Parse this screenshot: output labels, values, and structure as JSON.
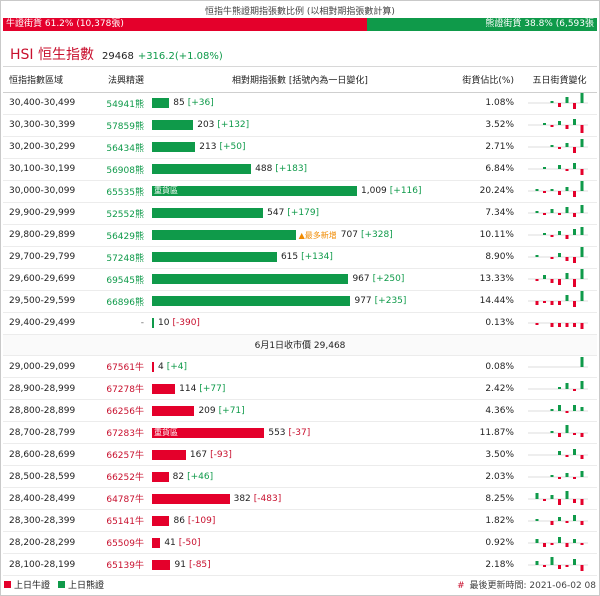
{
  "ratio": {
    "title": "恒指牛熊證期指張數比例 (以相對期指張數計算)",
    "bull_label": "牛證街貨 61.2% (10,378張)",
    "bear_label": "熊證街貨 38.8% (6,593張",
    "bull_pct": 61.2,
    "bull_color": "#e4002b",
    "bear_color": "#0f9a4a"
  },
  "index": {
    "name": "HSI 恒生指數",
    "value": "29468",
    "change": "+316.2(+1.08%)"
  },
  "columns": {
    "range": "恒指指數區域",
    "code": "法興精選",
    "contracts": "相對期指張數 [括號內為一日變化]",
    "pct": "街貨佔比(%)",
    "spark": "五日街貨變化"
  },
  "bar_scale_max": 1009,
  "hot_label": "▲最多新增",
  "heavy_label": "重貨區",
  "close_label": "6月1日收市價 29,468",
  "bear_rows": [
    {
      "range": "30,400-30,499",
      "code": "54941熊",
      "count": 85,
      "count_text": "85",
      "change": "[+36]",
      "pct": "1.08%",
      "spark": [
        0,
        0,
        0,
        1,
        -2,
        3,
        -3,
        5
      ]
    },
    {
      "range": "30,300-30,399",
      "code": "57859熊",
      "count": 203,
      "count_text": "203",
      "change": "[+132]",
      "pct": "3.52%",
      "spark": [
        0,
        0,
        1,
        -1,
        2,
        -2,
        3,
        -4
      ]
    },
    {
      "range": "30,200-30,299",
      "code": "56434熊",
      "count": 213,
      "count_text": "213",
      "change": "[+50]",
      "pct": "2.71%",
      "spark": [
        0,
        0,
        0,
        1,
        -1,
        2,
        -3,
        4
      ]
    },
    {
      "range": "30,100-30,199",
      "code": "56908熊",
      "count": 488,
      "count_text": "488",
      "change": "[+183]",
      "pct": "6.84%",
      "spark": [
        0,
        0,
        1,
        0,
        2,
        -1,
        3,
        -3
      ]
    },
    {
      "range": "30,000-30,099",
      "code": "65535熊",
      "count": 1009,
      "count_text": "1,009",
      "change": "[+116]",
      "pct": "20.24%",
      "heavy": true,
      "spark": [
        0,
        1,
        -1,
        1,
        -2,
        2,
        -3,
        5
      ]
    },
    {
      "range": "29,900-29,999",
      "code": "52552熊",
      "count": 547,
      "count_text": "547",
      "change": "[+179]",
      "pct": "7.34%",
      "spark": [
        0,
        1,
        -1,
        2,
        -1,
        3,
        -2,
        4
      ]
    },
    {
      "range": "29,800-29,899",
      "code": "56429熊",
      "count": 707,
      "count_text": "707",
      "change": "[+328]",
      "pct": "10.11%",
      "hot": true,
      "spark": [
        0,
        0,
        1,
        -1,
        2,
        -2,
        3,
        4
      ]
    },
    {
      "range": "29,700-29,799",
      "code": "57248熊",
      "count": 615,
      "count_text": "615",
      "change": "[+134]",
      "pct": "8.90%",
      "spark": [
        0,
        1,
        0,
        -1,
        2,
        -2,
        -3,
        5
      ]
    },
    {
      "range": "29,600-29,699",
      "code": "69545熊",
      "count": 967,
      "count_text": "967",
      "change": "[+250]",
      "pct": "13.33%",
      "spark": [
        0,
        -1,
        2,
        -2,
        -3,
        3,
        -4,
        5
      ]
    },
    {
      "range": "29,500-29,599",
      "code": "66896熊",
      "count": 977,
      "count_text": "977",
      "change": "[+235]",
      "pct": "14.44%",
      "spark": [
        0,
        -2,
        -1,
        -2,
        -2,
        3,
        -3,
        5
      ]
    },
    {
      "range": "29,400-29,499",
      "code": "-",
      "count": 10,
      "count_text": "10",
      "change": "[-390]",
      "pct": "0.13%",
      "spark": [
        0,
        -1,
        0,
        -2,
        -2,
        -2,
        -2,
        -3
      ]
    }
  ],
  "bull_rows": [
    {
      "range": "29,000-29,099",
      "code": "67561牛",
      "count": 4,
      "count_text": "4",
      "change": "[+4]",
      "pct": "0.08%",
      "spark": [
        0,
        0,
        0,
        0,
        0,
        0,
        0,
        5
      ]
    },
    {
      "range": "28,900-28,999",
      "code": "67278牛",
      "count": 114,
      "count_text": "114",
      "change": "[+77]",
      "pct": "2.42%",
      "spark": [
        0,
        0,
        0,
        0,
        1,
        3,
        -1,
        4
      ]
    },
    {
      "range": "28,800-28,899",
      "code": "66256牛",
      "count": 209,
      "count_text": "209",
      "change": "[+71]",
      "pct": "4.36%",
      "spark": [
        0,
        0,
        0,
        1,
        3,
        -1,
        3,
        2
      ]
    },
    {
      "range": "28,700-28,799",
      "code": "67283牛",
      "count": 553,
      "count_text": "553",
      "change": "[-37]",
      "pct": "11.87%",
      "heavy": true,
      "spark": [
        0,
        0,
        0,
        1,
        -2,
        4,
        -1,
        -2
      ]
    },
    {
      "range": "28,600-28,699",
      "code": "66257牛",
      "count": 167,
      "count_text": "167",
      "change": "[-93]",
      "pct": "3.50%",
      "spark": [
        0,
        0,
        0,
        0,
        2,
        -1,
        3,
        -2
      ]
    },
    {
      "range": "28,500-28,599",
      "code": "66252牛",
      "count": 82,
      "count_text": "82",
      "change": "[+46]",
      "pct": "2.03%",
      "spark": [
        0,
        0,
        0,
        1,
        -1,
        2,
        -1,
        3
      ]
    },
    {
      "range": "28,400-28,499",
      "code": "64787牛",
      "count": 382,
      "count_text": "382",
      "change": "[-483]",
      "pct": "8.25%",
      "spark": [
        0,
        3,
        -1,
        2,
        -3,
        4,
        -2,
        -3
      ]
    },
    {
      "range": "28,300-28,399",
      "code": "65141牛",
      "count": 86,
      "count_text": "86",
      "change": "[-109]",
      "pct": "1.82%",
      "spark": [
        0,
        1,
        0,
        -2,
        2,
        -1,
        3,
        -2
      ]
    },
    {
      "range": "28,200-28,299",
      "code": "65509牛",
      "count": 41,
      "count_text": "41",
      "change": "[-50]",
      "pct": "0.92%",
      "spark": [
        0,
        2,
        -2,
        -1,
        3,
        -2,
        2,
        -1
      ]
    },
    {
      "range": "28,100-28,199",
      "code": "65139牛",
      "count": 91,
      "count_text": "91",
      "change": "[-85]",
      "pct": "2.18%",
      "spark": [
        0,
        2,
        -1,
        4,
        -2,
        -1,
        3,
        -3
      ]
    }
  ],
  "legend": {
    "bull": "上日牛證",
    "bear": "上日熊證"
  },
  "update": {
    "hash": "#",
    "text": "最後更新時間: 2021-06-02 08"
  }
}
